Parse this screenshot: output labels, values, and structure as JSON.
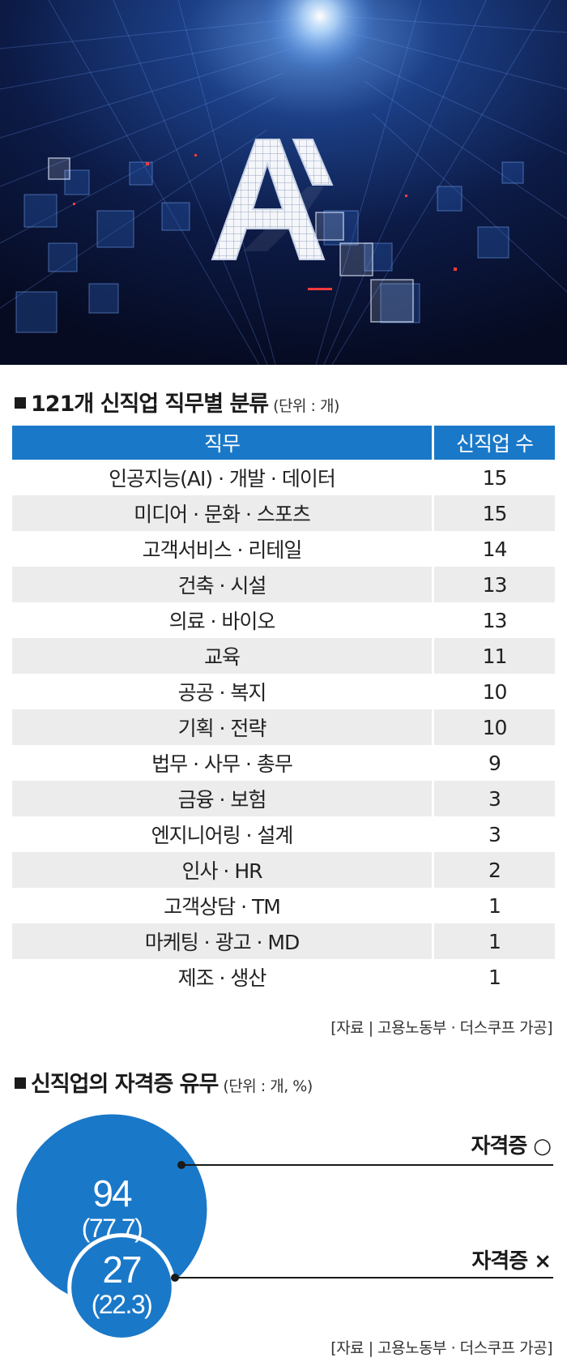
{
  "hero": {
    "logo_text": "AI"
  },
  "table_section": {
    "title": "121개 신직업 직무별 분류",
    "unit": "(단위 : 개)",
    "source": "[자료 | 고용노동부 · 더스쿠프 가공]"
  },
  "cert_section": {
    "title": "신직업의 자격증 유무",
    "unit": "(단위 : 개, %)",
    "source": "[자료 | 고용노동부 · 더스쿠프 가공]",
    "value_display": [
      "94",
      "27"
    ],
    "percent_display": [
      "(77.7)",
      "(22.3)"
    ]
  },
  "colors": {
    "accent": "#1a78c8",
    "row_alt": "#ececec",
    "text": "#1a1a1a"
  },
  "chart_data": [
    {
      "type": "table",
      "columns": [
        "직무",
        "신직업 수"
      ],
      "rows": [
        [
          "인공지능(AI) · 개발 · 데이터",
          "15"
        ],
        [
          "미디어 · 문화 · 스포츠",
          "15"
        ],
        [
          "고객서비스 · 리테일",
          "14"
        ],
        [
          "건축 · 시설",
          "13"
        ],
        [
          "의료 · 바이오",
          "13"
        ],
        [
          "교육",
          "11"
        ],
        [
          "공공 · 복지",
          "10"
        ],
        [
          "기획 · 전략",
          "10"
        ],
        [
          "법무 · 사무 · 총무",
          "9"
        ],
        [
          "금융 · 보험",
          "3"
        ],
        [
          "엔지니어링 · 설계",
          "3"
        ],
        [
          "인사 · HR",
          "2"
        ],
        [
          "고객상담 · TM",
          "1"
        ],
        [
          "마케팅 · 광고 · MD",
          "1"
        ],
        [
          "제조 · 생산",
          "1"
        ]
      ]
    },
    {
      "type": "bubble",
      "categories": [
        "자격증 ○",
        "자격증 ×"
      ],
      "values": [
        94,
        27
      ],
      "percent": [
        77.7,
        22.3
      ]
    }
  ]
}
